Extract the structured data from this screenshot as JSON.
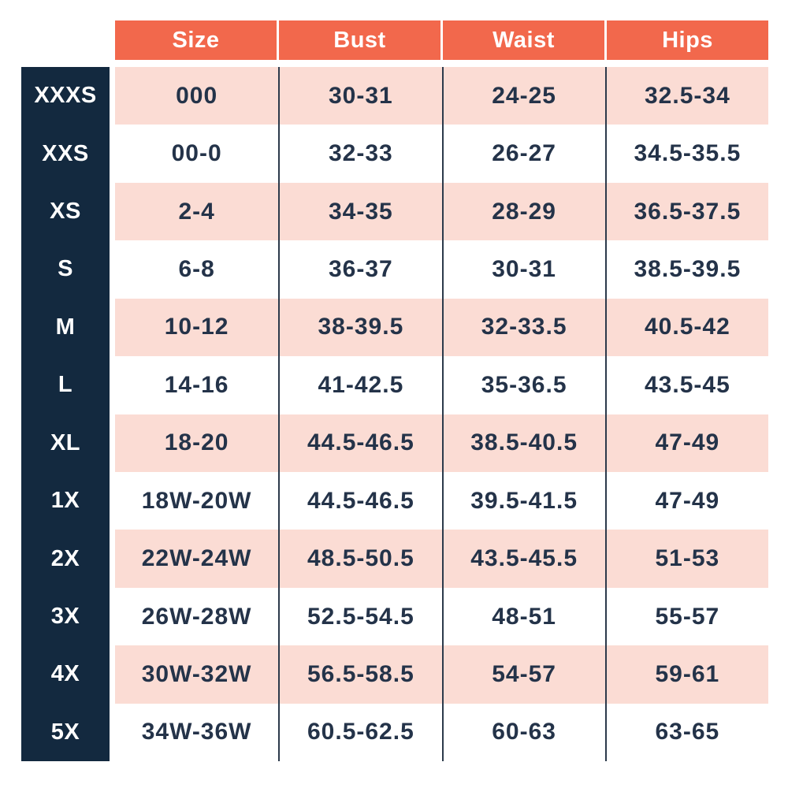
{
  "colors": {
    "header_bg": "#F2684C",
    "label_bg": "#13293F",
    "row_pink": "#FBDCD4",
    "row_white": "#FFFFFF",
    "text_dark": "#243349",
    "text_light": "#FFFFFF",
    "divider": "#2C3A4B"
  },
  "chart_data": {
    "type": "table",
    "columns": [
      "Size",
      "Bust",
      "Waist",
      "Hips"
    ],
    "row_label_column": "",
    "rows": [
      {
        "label": "XXXS",
        "size": "000",
        "bust": "30-31",
        "waist": "24-25",
        "hips": "32.5-34"
      },
      {
        "label": "XXS",
        "size": "00-0",
        "bust": "32-33",
        "waist": "26-27",
        "hips": "34.5-35.5"
      },
      {
        "label": "XS",
        "size": "2-4",
        "bust": "34-35",
        "waist": "28-29",
        "hips": "36.5-37.5"
      },
      {
        "label": "S",
        "size": "6-8",
        "bust": "36-37",
        "waist": "30-31",
        "hips": "38.5-39.5"
      },
      {
        "label": "M",
        "size": "10-12",
        "bust": "38-39.5",
        "waist": "32-33.5",
        "hips": "40.5-42"
      },
      {
        "label": "L",
        "size": "14-16",
        "bust": "41-42.5",
        "waist": "35-36.5",
        "hips": "43.5-45"
      },
      {
        "label": "XL",
        "size": "18-20",
        "bust": "44.5-46.5",
        "waist": "38.5-40.5",
        "hips": "47-49"
      },
      {
        "label": "1X",
        "size": "18W-20W",
        "bust": "44.5-46.5",
        "waist": "39.5-41.5",
        "hips": "47-49"
      },
      {
        "label": "2X",
        "size": "22W-24W",
        "bust": "48.5-50.5",
        "waist": "43.5-45.5",
        "hips": "51-53"
      },
      {
        "label": "3X",
        "size": "26W-28W",
        "bust": "52.5-54.5",
        "waist": "48-51",
        "hips": "55-57"
      },
      {
        "label": "4X",
        "size": "30W-32W",
        "bust": "56.5-58.5",
        "waist": "54-57",
        "hips": "59-61"
      },
      {
        "label": "5X",
        "size": "34W-36W",
        "bust": "60.5-62.5",
        "waist": "60-63",
        "hips": "63-65"
      }
    ]
  }
}
